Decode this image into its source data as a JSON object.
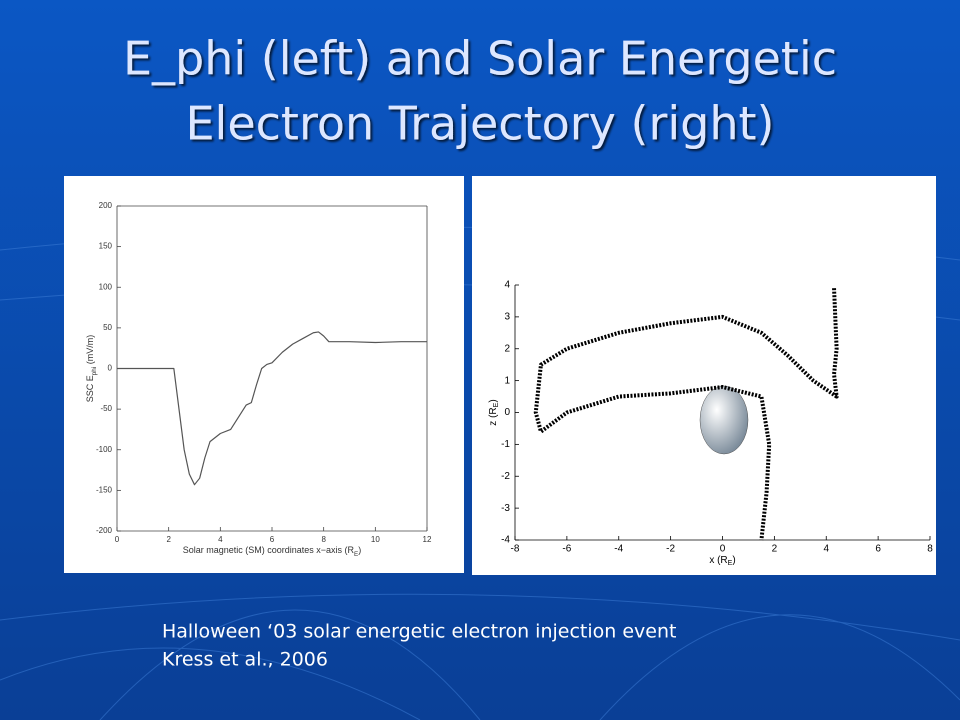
{
  "slide": {
    "title": [
      "E_phi (left) and Solar Energetic",
      "Electron Trajectory (right)"
    ],
    "caption": [
      "Halloween ‘03 solar energetic electron injection event",
      "Kress et al., 2006"
    ]
  },
  "chart_data": [
    {
      "type": "line",
      "xlabel": [
        "Solar magnetic (SM) coordinates x−axis (R",
        "E",
        ")"
      ],
      "ylabel": [
        "SSC E",
        "phi",
        " (mV/m)"
      ],
      "x": [
        0,
        2.2,
        2.4,
        2.6,
        2.8,
        3.0,
        3.2,
        3.4,
        3.6,
        4.0,
        4.4,
        4.6,
        5.0,
        5.2,
        5.4,
        5.6,
        5.8,
        6.0,
        6.4,
        6.8,
        7.2,
        7.6,
        7.8,
        8.0,
        8.2,
        9,
        10,
        11,
        12
      ],
      "series": [
        {
          "color": "#555555",
          "values": [
            0,
            0,
            -50,
            -100,
            -130,
            -143,
            -135,
            -110,
            -90,
            -80,
            -75,
            -65,
            -45,
            -42,
            -20,
            0,
            5,
            7,
            20,
            30,
            37,
            44,
            45,
            40,
            33,
            33,
            32,
            33,
            33
          ]
        }
      ],
      "xlim": [
        0,
        12
      ],
      "xticks": [
        0,
        2,
        4,
        6,
        8,
        10,
        12
      ],
      "ylim": [
        -200,
        200
      ],
      "yticks": [
        -200,
        -150,
        -100,
        -50,
        0,
        50,
        100,
        150,
        200
      ],
      "box": true
    },
    {
      "type": "line",
      "xlabel": [
        "x (R",
        "E",
        ")"
      ],
      "ylabel": [
        "z (R",
        "E",
        ")"
      ],
      "x": [
        4.3,
        4.4,
        4.3,
        4.4,
        3.5,
        2.5,
        1.5,
        0,
        -2,
        -4,
        -6,
        -7,
        -7.2,
        -7,
        -6,
        -4,
        -2,
        0,
        1.5,
        1.8,
        1.7,
        1.5
      ],
      "series": [
        {
          "color": "#000000",
          "values": [
            3.9,
            2,
            1.2,
            0.5,
            1,
            1.8,
            2.5,
            3,
            2.8,
            2.5,
            2,
            1.5,
            0,
            -0.6,
            0,
            0.5,
            0.6,
            0.8,
            0.5,
            -1,
            -2.5,
            -4
          ]
        }
      ],
      "xlim": [
        -8,
        8
      ],
      "xticks": [
        -8,
        -6,
        -4,
        -2,
        0,
        2,
        4,
        6,
        8
      ],
      "ylim": [
        -4,
        4
      ],
      "yticks": [
        -4,
        -3,
        -2,
        -1,
        0,
        1,
        2,
        3,
        4
      ],
      "box": false
    }
  ]
}
